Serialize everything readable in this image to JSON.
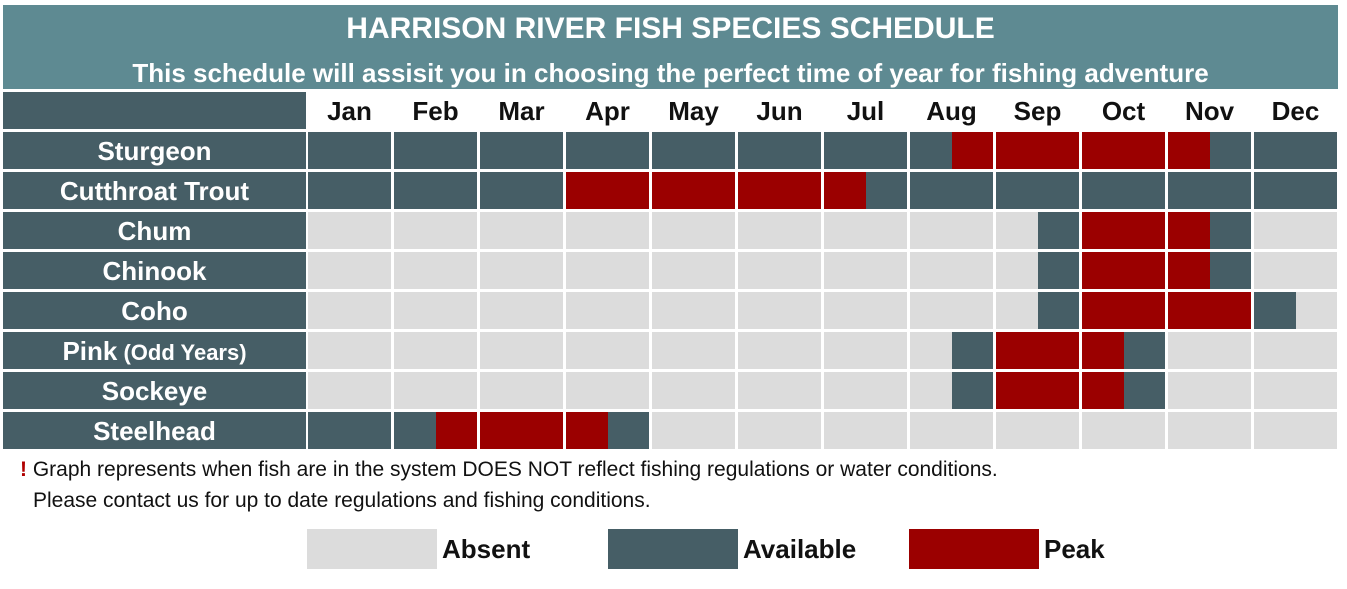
{
  "title": "HARRISON RIVER FISH SPECIES SCHEDULE",
  "subtitle": "This schedule will assisit you in choosing the perfect time of year for fishing adventure",
  "colors": {
    "header": "#5e8a92",
    "absent": "#dcdcdc",
    "available": "#465e66",
    "peak": "#9b0000"
  },
  "chart_data": {
    "type": "heatmap",
    "months": [
      "Jan",
      "Feb",
      "Mar",
      "Apr",
      "May",
      "Jun",
      "Jul",
      "Aug",
      "Sep",
      "Oct",
      "Nov",
      "Dec"
    ],
    "status_scale": "each month split into two halves; values per half-month",
    "species": [
      {
        "name": "Sturgeon",
        "note": "",
        "halves": [
          "available",
          "available",
          "available",
          "available",
          "available",
          "available",
          "available",
          "available",
          "available",
          "available",
          "available",
          "available",
          "available",
          "available",
          "available",
          "peak",
          "peak",
          "peak",
          "peak",
          "peak",
          "peak",
          "available",
          "available",
          "available"
        ]
      },
      {
        "name": "Cutthroat Trout",
        "note": "",
        "halves": [
          "available",
          "available",
          "available",
          "available",
          "available",
          "available",
          "peak",
          "peak",
          "peak",
          "peak",
          "peak",
          "peak",
          "peak",
          "available",
          "available",
          "available",
          "available",
          "available",
          "available",
          "available",
          "available",
          "available",
          "available",
          "available"
        ]
      },
      {
        "name": "Chum",
        "note": "",
        "halves": [
          "absent",
          "absent",
          "absent",
          "absent",
          "absent",
          "absent",
          "absent",
          "absent",
          "absent",
          "absent",
          "absent",
          "absent",
          "absent",
          "absent",
          "absent",
          "absent",
          "absent",
          "available",
          "peak",
          "peak",
          "peak",
          "available",
          "absent",
          "absent"
        ]
      },
      {
        "name": "Chinook",
        "note": "",
        "halves": [
          "absent",
          "absent",
          "absent",
          "absent",
          "absent",
          "absent",
          "absent",
          "absent",
          "absent",
          "absent",
          "absent",
          "absent",
          "absent",
          "absent",
          "absent",
          "absent",
          "absent",
          "available",
          "peak",
          "peak",
          "peak",
          "available",
          "absent",
          "absent"
        ]
      },
      {
        "name": "Coho",
        "note": "",
        "halves": [
          "absent",
          "absent",
          "absent",
          "absent",
          "absent",
          "absent",
          "absent",
          "absent",
          "absent",
          "absent",
          "absent",
          "absent",
          "absent",
          "absent",
          "absent",
          "absent",
          "absent",
          "available",
          "peak",
          "peak",
          "peak",
          "peak",
          "available",
          "absent"
        ]
      },
      {
        "name": "Pink",
        "note": "(Odd Years)",
        "halves": [
          "absent",
          "absent",
          "absent",
          "absent",
          "absent",
          "absent",
          "absent",
          "absent",
          "absent",
          "absent",
          "absent",
          "absent",
          "absent",
          "absent",
          "absent",
          "available",
          "peak",
          "peak",
          "peak",
          "available",
          "absent",
          "absent",
          "absent",
          "absent"
        ]
      },
      {
        "name": "Sockeye",
        "note": "",
        "halves": [
          "absent",
          "absent",
          "absent",
          "absent",
          "absent",
          "absent",
          "absent",
          "absent",
          "absent",
          "absent",
          "absent",
          "absent",
          "absent",
          "absent",
          "absent",
          "available",
          "peak",
          "peak",
          "peak",
          "available",
          "absent",
          "absent",
          "absent",
          "absent"
        ]
      },
      {
        "name": "Steelhead",
        "note": "",
        "halves": [
          "available",
          "available",
          "available",
          "peak",
          "peak",
          "peak",
          "peak",
          "available",
          "absent",
          "absent",
          "absent",
          "absent",
          "absent",
          "absent",
          "absent",
          "absent",
          "absent",
          "absent",
          "absent",
          "absent",
          "absent",
          "absent",
          "absent",
          "absent"
        ]
      }
    ],
    "legend": [
      {
        "key": "absent",
        "label": "Absent"
      },
      {
        "key": "available",
        "label": "Available"
      },
      {
        "key": "peak",
        "label": "Peak"
      }
    ]
  },
  "footnote": {
    "mark": "!",
    "line1": " Graph represents when fish are in the system DOES NOT reflect fishing regulations or water conditions.",
    "line2": "Please contact us for up to date regulations and fishing conditions."
  }
}
